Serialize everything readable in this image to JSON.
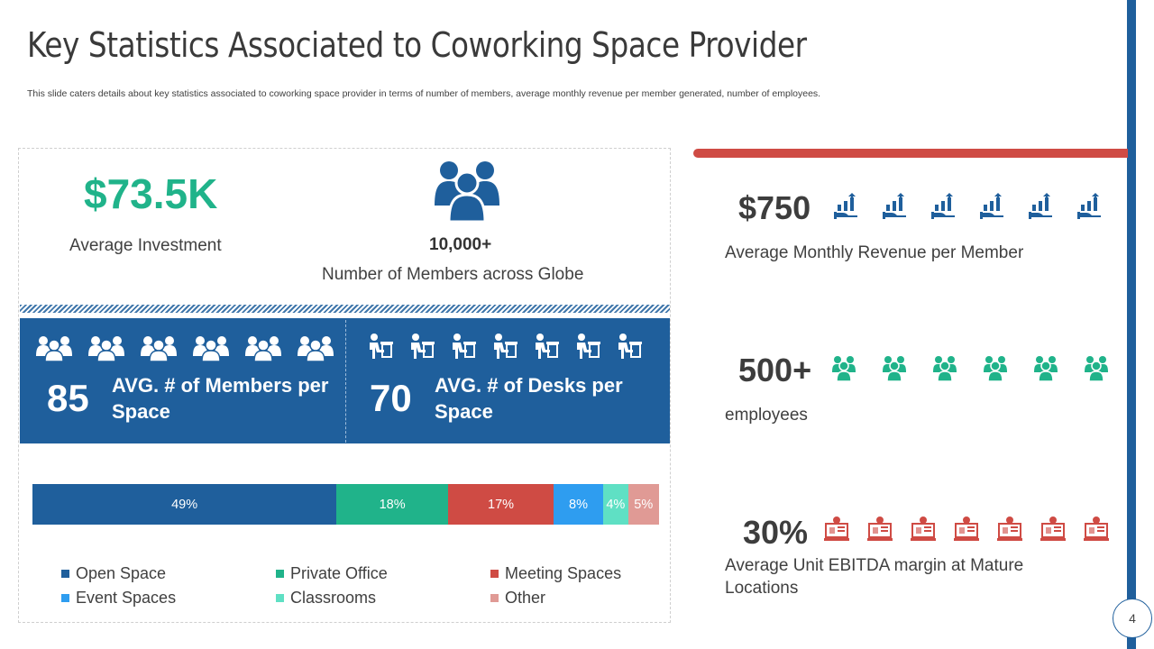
{
  "slide": {
    "title": "Key Statistics Associated to Coworking Space Provider",
    "subtitle": "This slide caters details about key statistics associated to coworking space provider in terms of number of members, average monthly revenue per member generated, number of employees.",
    "page_number": "4"
  },
  "investment": {
    "value": "$73.5K",
    "label": "Average Investment"
  },
  "members": {
    "icon": "people-group-icon",
    "value": "10,000+",
    "label": "Number  of Members  across Globe"
  },
  "band": {
    "members_per_space": {
      "value": "85",
      "label": "AVG. # of Members per Space",
      "icon": "people-group-icon",
      "icon_count": 6
    },
    "desks_per_space": {
      "value": "70",
      "label": "AVG. # of Desks per Space",
      "icon": "person-at-desk-icon",
      "icon_count": 7
    }
  },
  "chart_data": {
    "type": "bar",
    "orientation": "horizontal-100%-stacked",
    "categories": [
      "Open Space",
      "Private Office",
      "Meeting Spaces",
      "Event Spaces",
      "Classrooms",
      "Other"
    ],
    "values": [
      49,
      18,
      17,
      8,
      4,
      5
    ],
    "data_labels": [
      "49%",
      "18%",
      "17%",
      "8%",
      "4%",
      "5%"
    ],
    "colors": [
      "#1f5f9c",
      "#20b38a",
      "#cf4b44",
      "#2e9df0",
      "#5fe0c4",
      "#e09a95"
    ],
    "legend_placement": "bottom"
  },
  "right_stats": [
    {
      "value": "$750",
      "label": "Average Monthly Revenue per Member",
      "icon": "revenue-growth-hand-icon",
      "icon_color": "#1f5f9c",
      "icon_count": 6
    },
    {
      "value": "500+",
      "label": "employees",
      "icon": "employee-group-icon",
      "icon_color": "#20b38a",
      "icon_count": 6
    },
    {
      "value": "30%",
      "label": "Average Unit  EBITDA margin  at Mature Locations",
      "icon": "computer-chart-icon",
      "icon_color": "#cf4b44",
      "icon_count": 7
    }
  ],
  "colors": {
    "primary_blue": "#1f5f9c",
    "green": "#20b38a",
    "red": "#cf4b44"
  }
}
